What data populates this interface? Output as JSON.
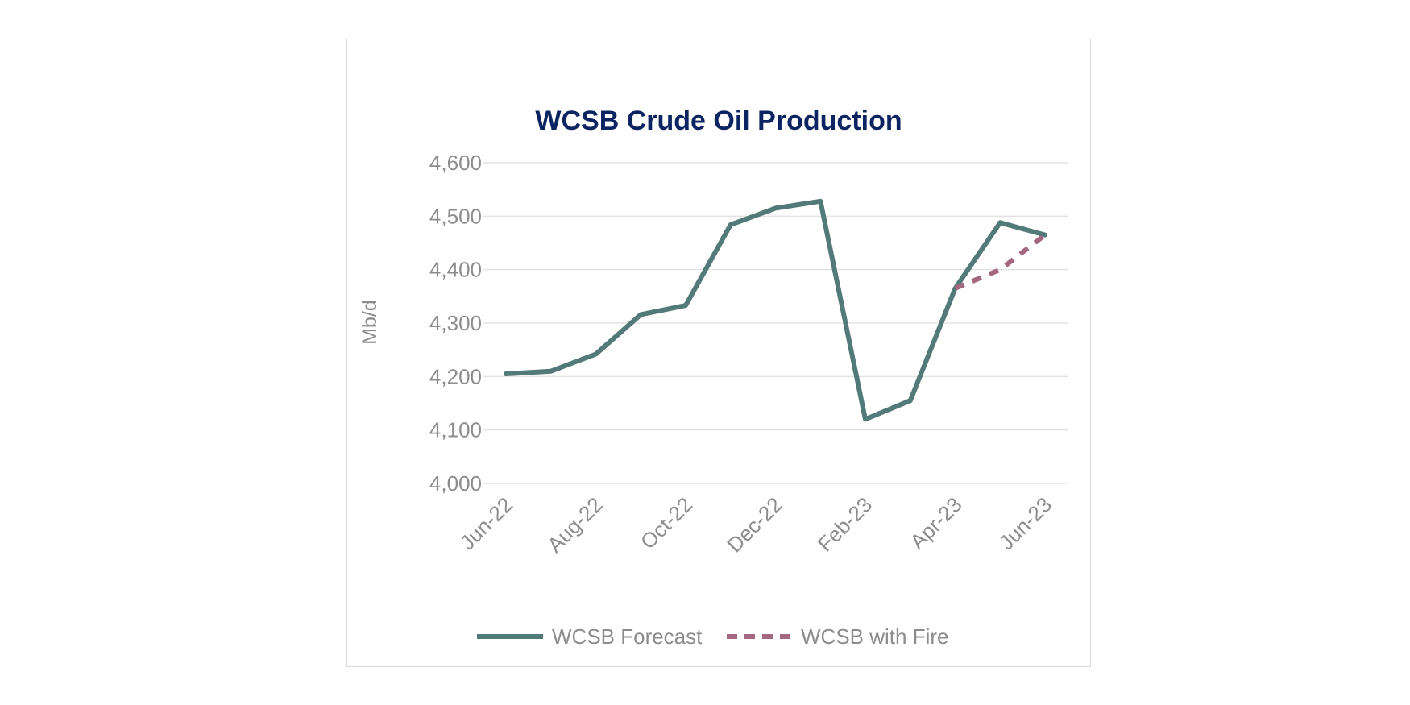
{
  "chart_data": {
    "type": "line",
    "title": "WCSB Crude Oil Production",
    "xlabel": "",
    "ylabel": "Mb/d",
    "categories": [
      "Jun-22",
      "Jul-22",
      "Aug-22",
      "Sep-22",
      "Oct-22",
      "Nov-22",
      "Dec-22",
      "Jan-23",
      "Feb-23",
      "Mar-23",
      "Apr-23",
      "May-23",
      "Jun-23"
    ],
    "x_tick_labels": [
      "Jun-22",
      "Aug-22",
      "Oct-22",
      "Dec-22",
      "Feb-23",
      "Apr-23",
      "Jun-23"
    ],
    "y_ticks": [
      "4,000",
      "4,100",
      "4,200",
      "4,300",
      "4,400",
      "4,500",
      "4,600"
    ],
    "ylim": [
      4000,
      4600
    ],
    "grid": true,
    "legend_position": "bottom",
    "series": [
      {
        "name": "WCSB Forecast",
        "color": "#527a78",
        "style": "solid",
        "values": [
          4205,
          4210,
          4242,
          4316,
          4333,
          4484,
          4515,
          4528,
          4120,
          4155,
          4365,
          4488,
          4465
        ]
      },
      {
        "name": "WCSB with Fire",
        "color": "#a3677f",
        "style": "dashed",
        "values": [
          null,
          null,
          null,
          null,
          null,
          null,
          null,
          null,
          null,
          null,
          4365,
          4400,
          4465
        ]
      }
    ]
  }
}
